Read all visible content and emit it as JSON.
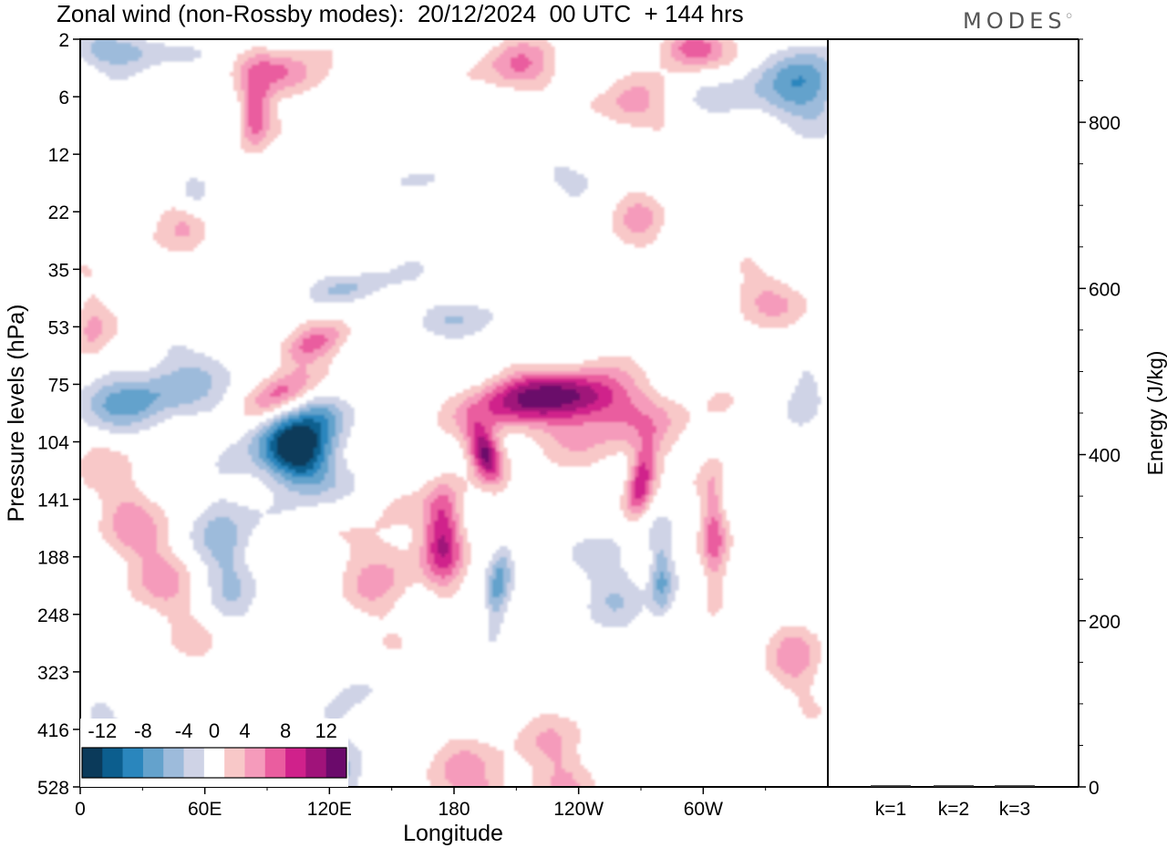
{
  "title": "Zonal wind (non-Rossby modes):  20/12/2024  00 UTC  + 144 hrs",
  "brand": "MODES",
  "chart_data": [
    {
      "type": "heatmap",
      "variable": "Zonal wind (non-Rossby modes)",
      "xlabel": "Longitude",
      "ylabel": "Pressure levels (hPa)",
      "x_ticks": [
        "0",
        "60E",
        "120E",
        "180",
        "120W",
        "60W"
      ],
      "x_tick_degrees": [
        0,
        60,
        120,
        180,
        240,
        300
      ],
      "x_range_degrees": [
        0,
        360
      ],
      "y_ticks": [
        "2",
        "6",
        "12",
        "22",
        "35",
        "53",
        "75",
        "104",
        "141",
        "188",
        "248",
        "323",
        "416",
        "528"
      ],
      "y_scale": "model levels, pressure increasing downward",
      "colorbar": {
        "ticks": [
          "-12",
          "-8",
          "-4",
          "0",
          "4",
          "8",
          "12"
        ],
        "bounds": [
          -14,
          -12,
          -10,
          -8,
          -6,
          -4,
          -2,
          2,
          4,
          6,
          8,
          10,
          12,
          14
        ],
        "colors": [
          "#0b3a5a",
          "#0c5e8e",
          "#2a86bd",
          "#64a2cc",
          "#9dbbdb",
          "#cfd3e6",
          "#ffffff",
          "#f8c8c8",
          "#f59bbb",
          "#ea5d9f",
          "#d0218b",
          "#a0137a",
          "#6b0a6b"
        ]
      },
      "features": [
        {
          "kind": "negative",
          "peak": -14,
          "lon": 103,
          "level": "104-188",
          "note": "strongest easterly core, tilted upward to the east"
        },
        {
          "kind": "positive",
          "peak": 12,
          "lon": 195,
          "level": "75-141",
          "note": "westerly band from ~175 to ~275 deg"
        },
        {
          "kind": "positive",
          "peak": 10,
          "lon": 175,
          "level": "141-188"
        },
        {
          "kind": "positive",
          "peak": 10,
          "lon": 271,
          "level": "104-141"
        },
        {
          "kind": "positive",
          "peak": 8,
          "lon": 98,
          "level": "53-75"
        },
        {
          "kind": "positive",
          "peak": 8,
          "lon": 84,
          "level": "2-12"
        },
        {
          "kind": "positive",
          "peak": 8,
          "lon": 294,
          "level": "2"
        },
        {
          "kind": "negative",
          "peak": -6,
          "lon": 15,
          "level": "75-104"
        },
        {
          "kind": "negative",
          "peak": -6,
          "lon": 352,
          "level": "2-6"
        },
        {
          "kind": "negative",
          "peak": -6,
          "lon": 201,
          "level": "188-248"
        },
        {
          "kind": "negative",
          "peak": -6,
          "lon": 280,
          "level": "188-248"
        }
      ]
    },
    {
      "type": "bar",
      "ylabel": "Energy (J/kg)",
      "categories": [
        "k=1",
        "k=2",
        "k=3"
      ],
      "values": [
        2,
        2,
        2
      ],
      "ylim": [
        0,
        900
      ],
      "y_ticks": [
        "0",
        "200",
        "400",
        "600",
        "800"
      ]
    }
  ]
}
